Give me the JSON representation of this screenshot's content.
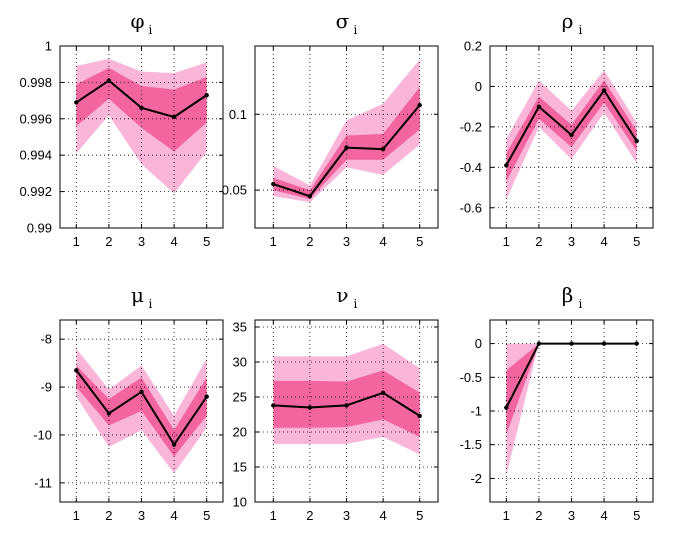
{
  "chart_data": [
    {
      "type": "line",
      "title": "φ",
      "subscript": "i",
      "x": [
        1,
        2,
        3,
        4,
        5
      ],
      "ylim": [
        0.99,
        1.0
      ],
      "yticks": [
        0.99,
        0.992,
        0.994,
        0.996,
        0.998,
        1
      ],
      "ytick_labels": [
        "0.99",
        "0.992",
        "0.994",
        "0.996",
        "0.998",
        "1"
      ],
      "series": [
        {
          "name": "median",
          "values": [
            0.9969,
            0.9981,
            0.9966,
            0.9961,
            0.9973
          ]
        },
        {
          "name": "inner_band_low",
          "values": [
            0.9956,
            0.9971,
            0.9955,
            0.9942,
            0.9958
          ]
        },
        {
          "name": "inner_band_high",
          "values": [
            0.9979,
            0.9988,
            0.9978,
            0.9976,
            0.9983
          ]
        },
        {
          "name": "outer_band_low",
          "values": [
            0.9941,
            0.9962,
            0.9935,
            0.9919,
            0.9942
          ]
        },
        {
          "name": "outer_band_high",
          "values": [
            0.9989,
            0.9993,
            0.9986,
            0.9985,
            0.9991
          ]
        }
      ]
    },
    {
      "type": "line",
      "title": "σ",
      "subscript": "i",
      "x": [
        1,
        2,
        3,
        4,
        5
      ],
      "ylim": [
        0.025,
        0.145
      ],
      "yticks": [
        0.05,
        0.1
      ],
      "ytick_labels": [
        "0.05",
        "0.1"
      ],
      "series": [
        {
          "name": "median",
          "values": [
            0.054,
            0.046,
            0.078,
            0.077,
            0.106
          ]
        },
        {
          "name": "inner_band_low",
          "values": [
            0.05,
            0.044,
            0.07,
            0.07,
            0.09
          ]
        },
        {
          "name": "inner_band_high",
          "values": [
            0.058,
            0.05,
            0.086,
            0.087,
            0.118
          ]
        },
        {
          "name": "outer_band_low",
          "values": [
            0.046,
            0.042,
            0.065,
            0.06,
            0.08
          ]
        },
        {
          "name": "outer_band_high",
          "values": [
            0.066,
            0.053,
            0.096,
            0.107,
            0.136
          ]
        }
      ]
    },
    {
      "type": "line",
      "title": "ρ",
      "subscript": "i",
      "x": [
        1,
        2,
        3,
        4,
        5
      ],
      "ylim": [
        -0.7,
        0.2
      ],
      "yticks": [
        -0.6,
        -0.4,
        -0.2,
        0,
        0.2
      ],
      "ytick_labels": [
        "-0.6",
        "-0.4",
        "-0.2",
        "0",
        "0.2"
      ],
      "series": [
        {
          "name": "median",
          "values": [
            -0.39,
            -0.1,
            -0.24,
            -0.02,
            -0.27
          ]
        },
        {
          "name": "inner_band_low",
          "values": [
            -0.47,
            -0.16,
            -0.3,
            -0.08,
            -0.32
          ]
        },
        {
          "name": "inner_band_high",
          "values": [
            -0.33,
            -0.05,
            -0.19,
            0.03,
            -0.22
          ]
        },
        {
          "name": "outer_band_low",
          "values": [
            -0.56,
            -0.2,
            -0.36,
            -0.13,
            -0.38
          ]
        },
        {
          "name": "outer_band_high",
          "values": [
            -0.26,
            0.03,
            -0.12,
            0.08,
            -0.18
          ]
        }
      ]
    },
    {
      "type": "line",
      "title": "μ",
      "subscript": "i",
      "x": [
        1,
        2,
        3,
        4,
        5
      ],
      "ylim": [
        -11.4,
        -7.6
      ],
      "yticks": [
        -11,
        -10,
        -9,
        -8
      ],
      "ytick_labels": [
        "-11",
        "-10",
        "-9",
        "-8"
      ],
      "series": [
        {
          "name": "median",
          "values": [
            -8.65,
            -9.55,
            -9.1,
            -10.2,
            -9.2
          ]
        },
        {
          "name": "inner_band_low",
          "values": [
            -9.0,
            -9.8,
            -9.5,
            -10.45,
            -9.6
          ]
        },
        {
          "name": "inner_band_high",
          "values": [
            -8.55,
            -9.25,
            -8.8,
            -9.9,
            -8.8
          ]
        },
        {
          "name": "outer_band_low",
          "values": [
            -9.2,
            -10.25,
            -9.9,
            -10.8,
            -9.85
          ]
        },
        {
          "name": "outer_band_high",
          "values": [
            -8.2,
            -9.05,
            -8.55,
            -9.6,
            -8.4
          ]
        }
      ]
    },
    {
      "type": "line",
      "title": "ν",
      "subscript": "i",
      "x": [
        1,
        2,
        3,
        4,
        5
      ],
      "ylim": [
        10,
        36
      ],
      "yticks": [
        10,
        15,
        20,
        25,
        30,
        35
      ],
      "ytick_labels": [
        "10",
        "15",
        "20",
        "25",
        "30",
        "35"
      ],
      "series": [
        {
          "name": "median",
          "values": [
            23.8,
            23.5,
            23.8,
            25.6,
            22.3
          ]
        },
        {
          "name": "inner_band_low",
          "values": [
            20.6,
            20.6,
            20.7,
            21.8,
            19.3
          ]
        },
        {
          "name": "inner_band_high",
          "values": [
            27.3,
            27.3,
            27.2,
            28.8,
            25.6
          ]
        },
        {
          "name": "outer_band_low",
          "values": [
            18.3,
            18.3,
            18.3,
            19.3,
            16.8
          ]
        },
        {
          "name": "outer_band_high",
          "values": [
            30.8,
            30.8,
            30.8,
            32.6,
            29.1
          ]
        }
      ]
    },
    {
      "type": "line",
      "title": "β",
      "subscript": "i",
      "x": [
        1,
        2,
        3,
        4,
        5
      ],
      "ylim": [
        -2.35,
        0.35
      ],
      "yticks": [
        -2,
        -1.5,
        -1,
        -0.5,
        0
      ],
      "ytick_labels": [
        "-2",
        "-1.5",
        "-1",
        "-0.5",
        "0"
      ],
      "series": [
        {
          "name": "median",
          "values": [
            -0.95,
            0,
            0,
            0,
            0
          ]
        },
        {
          "name": "inner_band_low",
          "values": [
            -1.35,
            0,
            0,
            0,
            0
          ]
        },
        {
          "name": "inner_band_high",
          "values": [
            -0.4,
            0,
            0,
            0,
            0
          ]
        },
        {
          "name": "outer_band_low",
          "values": [
            -1.95,
            0,
            0,
            0,
            0
          ]
        },
        {
          "name": "outer_band_high",
          "values": [
            0,
            0,
            0,
            0,
            0
          ]
        }
      ]
    }
  ],
  "colors": {
    "outer_band": "#f9b6d9",
    "inner_band": "#f2659f",
    "median_line": "#000000",
    "grid": "#000000"
  }
}
